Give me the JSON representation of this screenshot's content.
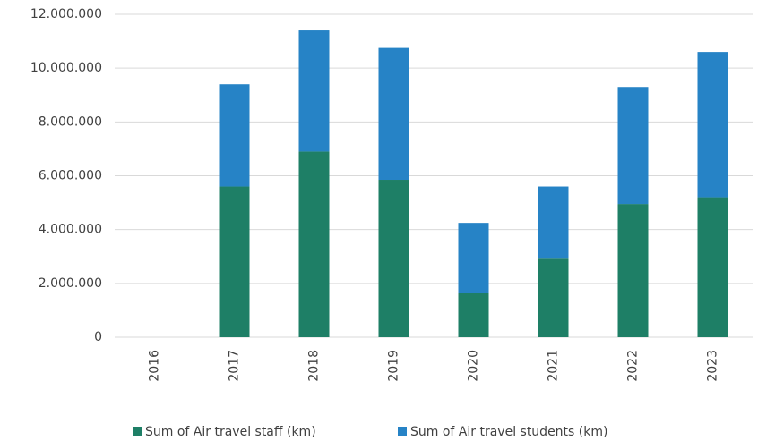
{
  "chart_data": {
    "type": "stacked_bar",
    "categories": [
      "2016",
      "2017",
      "2018",
      "2019",
      "2020",
      "2021",
      "2022",
      "2023"
    ],
    "series": [
      {
        "name": "Sum of Air travel staff (km)",
        "color": "#1e7f66",
        "values": [
          0,
          5600000,
          6900000,
          5850000,
          1650000,
          2950000,
          4950000,
          5200000
        ]
      },
      {
        "name": "Sum of Air travel students (km)",
        "color": "#2683c6",
        "values": [
          0,
          3800000,
          4500000,
          4900000,
          2600000,
          2650000,
          4350000,
          5400000
        ]
      }
    ],
    "ylim": [
      0,
      12000000
    ],
    "yticks": [
      0,
      {
        "value": 2000000,
        "label": "2.000.000"
      },
      {
        "value": 4000000,
        "label": "4.000.000"
      },
      {
        "value": 6000000,
        "label": "6.000.000"
      },
      {
        "value": 8000000,
        "label": "8.000.000"
      },
      {
        "value": 10000000,
        "label": "10.000.000"
      },
      {
        "value": 12000000,
        "label": "12.000.000"
      }
    ],
    "grid": true,
    "legend": "bottom"
  }
}
